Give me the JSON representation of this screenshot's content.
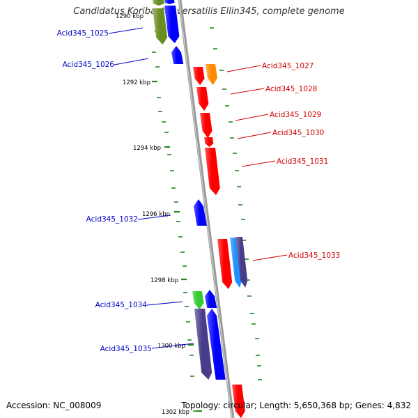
{
  "title": "Candidatus Koribacter versatilis Ellin345, complete genome",
  "accession": "Accession: NC_008009",
  "summary": "Topology: circular; Length: 5,650,368 bp; Genes: 4,832",
  "scale_labels": [
    "1290 kbp",
    "1292 kbp",
    "1294 kbp",
    "1296 kbp",
    "1298 kbp",
    "1300 kbp",
    "1302 kbp"
  ],
  "colors": {
    "backbone": "#9a9a9a",
    "tick": "#228822",
    "label_forward": "#d40000",
    "label_reverse": "#0000c8",
    "red": "#ff0000",
    "blue": "#0000ff",
    "orange": "#ff8c00",
    "olive": "#6b8e23",
    "green": "#33cc33",
    "navy": "#483d8b",
    "cyan": "#1e90ff"
  },
  "genes": [
    {
      "name": "Acid345_1025",
      "strand": "reverse"
    },
    {
      "name": "Acid345_1026",
      "strand": "reverse"
    },
    {
      "name": "Acid345_1027",
      "strand": "forward"
    },
    {
      "name": "Acid345_1028",
      "strand": "forward"
    },
    {
      "name": "Acid345_1029",
      "strand": "forward"
    },
    {
      "name": "Acid345_1030",
      "strand": "forward"
    },
    {
      "name": "Acid345_1031",
      "strand": "forward"
    },
    {
      "name": "Acid345_1032",
      "strand": "reverse"
    },
    {
      "name": "Acid345_1033",
      "strand": "forward"
    },
    {
      "name": "Acid345_1034",
      "strand": "reverse"
    },
    {
      "name": "Acid345_1035",
      "strand": "reverse"
    }
  ]
}
